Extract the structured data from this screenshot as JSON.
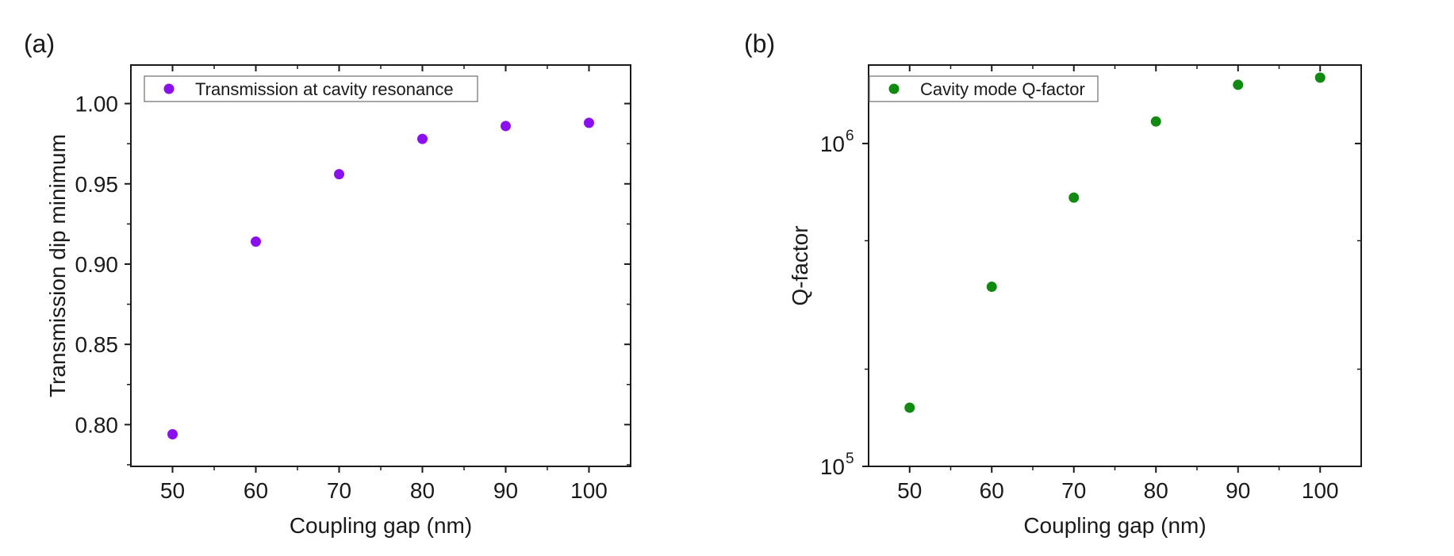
{
  "chart_data": [
    {
      "type": "scatter",
      "panel_label": "(a)",
      "xlabel": "Coupling gap (nm)",
      "ylabel": "Transmission dip minimum",
      "xlim": [
        45,
        105
      ],
      "ylim": [
        0.774,
        1.024
      ],
      "yscale": "linear",
      "xticks": [
        50,
        60,
        70,
        80,
        90,
        100
      ],
      "xtick_labels": [
        "50",
        "60",
        "70",
        "80",
        "90",
        "100"
      ],
      "yticks": [
        0.8,
        0.85,
        0.9,
        0.95,
        1.0
      ],
      "ytick_labels": [
        "0.80",
        "0.85",
        "0.90",
        "0.95",
        "1.00"
      ],
      "legend_position": "top-left",
      "series": [
        {
          "name": "Transmission at cavity resonance",
          "color": "#8b10f0",
          "x": [
            50,
            60,
            70,
            80,
            90,
            100
          ],
          "y": [
            0.794,
            0.914,
            0.956,
            0.978,
            0.986,
            0.988
          ]
        }
      ]
    },
    {
      "type": "scatter",
      "panel_label": "(b)",
      "xlabel": "Coupling gap (nm)",
      "ylabel": "Q-factor",
      "xlim": [
        45,
        105
      ],
      "ylim": [
        100000,
        1750000
      ],
      "yscale": "log",
      "xticks": [
        50,
        60,
        70,
        80,
        90,
        100
      ],
      "xtick_labels": [
        "50",
        "60",
        "70",
        "80",
        "90",
        "100"
      ],
      "yticks": [
        100000,
        1000000
      ],
      "ytick_labels": [
        {
          "base": "10",
          "exp": "5"
        },
        {
          "base": "10",
          "exp": "6"
        }
      ],
      "legend_position": "top-left",
      "series": [
        {
          "name": "Cavity mode Q-factor",
          "color": "#108a10",
          "x": [
            50,
            60,
            70,
            80,
            90,
            100
          ],
          "y": [
            152000,
            360000,
            680000,
            1170000,
            1520000,
            1600000
          ]
        }
      ]
    }
  ]
}
